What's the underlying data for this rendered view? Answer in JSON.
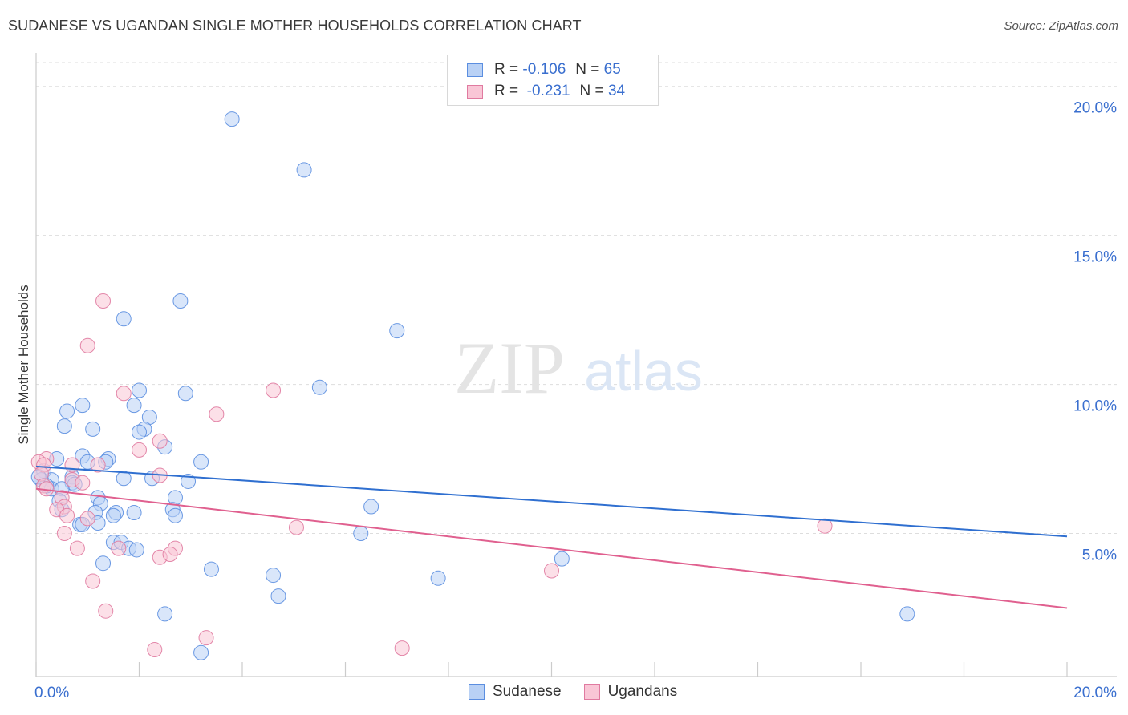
{
  "title": "SUDANESE VS UGANDAN SINGLE MOTHER HOUSEHOLDS CORRELATION CHART",
  "source": "Source: ZipAtlas.com",
  "watermark": {
    "zip": "ZIP",
    "atlas": "atlas"
  },
  "legend": {
    "r_label": "R =",
    "n_label": "N =",
    "rows": [
      {
        "r": "-0.106",
        "n": "65",
        "fill": "#b9d1f5",
        "stroke": "#5b8ee0"
      },
      {
        "r": "-0.231",
        "n": "34",
        "fill": "#f9c6d6",
        "stroke": "#e07aa0"
      }
    ]
  },
  "series_labels": [
    "Sudanese",
    "Ugandans"
  ],
  "chart_data": {
    "type": "scatter",
    "xlabel": "",
    "ylabel": "Single Mother Households",
    "xlim": [
      0,
      20
    ],
    "ylim": [
      0.2,
      20.8
    ],
    "x_tick_labels": [
      {
        "value": 0,
        "label": "0.0%"
      },
      {
        "value": 20,
        "label": "20.0%"
      }
    ],
    "y_tick_labels": [
      {
        "value": 5,
        "label": "5.0%"
      },
      {
        "value": 10,
        "label": "10.0%"
      },
      {
        "value": 15,
        "label": "15.0%"
      },
      {
        "value": 20,
        "label": "20.0%"
      }
    ],
    "grid": true,
    "legend_position": "top-center",
    "series": [
      {
        "name": "Sudanese",
        "color": "#5b8ee0",
        "fill": "#b9d1f5",
        "trend": {
          "x": [
            0,
            20
          ],
          "y": [
            7.25,
            4.9
          ]
        },
        "points": [
          [
            3.8,
            18.9
          ],
          [
            5.2,
            17.2
          ],
          [
            2.8,
            12.8
          ],
          [
            1.7,
            12.2
          ],
          [
            7.0,
            11.8
          ],
          [
            5.5,
            9.9
          ],
          [
            2.0,
            9.8
          ],
          [
            2.9,
            9.7
          ],
          [
            1.9,
            9.3
          ],
          [
            0.9,
            9.3
          ],
          [
            0.6,
            9.1
          ],
          [
            2.2,
            8.9
          ],
          [
            0.55,
            8.6
          ],
          [
            1.1,
            8.5
          ],
          [
            2.1,
            8.5
          ],
          [
            2.0,
            8.4
          ],
          [
            2.5,
            7.9
          ],
          [
            0.4,
            7.5
          ],
          [
            1.4,
            7.5
          ],
          [
            0.9,
            7.6
          ],
          [
            3.2,
            7.4
          ],
          [
            1.0,
            7.4
          ],
          [
            1.35,
            7.4
          ],
          [
            0.15,
            7.1
          ],
          [
            0.7,
            6.9
          ],
          [
            1.7,
            6.85
          ],
          [
            2.25,
            6.85
          ],
          [
            2.95,
            6.75
          ],
          [
            0.3,
            6.8
          ],
          [
            0.1,
            6.8
          ],
          [
            0.7,
            6.7
          ],
          [
            0.75,
            6.65
          ],
          [
            0.3,
            6.5
          ],
          [
            0.5,
            6.5
          ],
          [
            0.2,
            6.6
          ],
          [
            0.45,
            6.1
          ],
          [
            1.2,
            6.2
          ],
          [
            2.7,
            6.2
          ],
          [
            1.25,
            6.0
          ],
          [
            0.5,
            5.8
          ],
          [
            1.55,
            5.7
          ],
          [
            1.9,
            5.7
          ],
          [
            2.65,
            5.8
          ],
          [
            6.5,
            5.9
          ],
          [
            1.15,
            5.7
          ],
          [
            2.7,
            5.6
          ],
          [
            1.5,
            5.6
          ],
          [
            1.2,
            5.35
          ],
          [
            0.85,
            5.3
          ],
          [
            0.9,
            5.3
          ],
          [
            6.3,
            5.0
          ],
          [
            1.5,
            4.7
          ],
          [
            1.65,
            4.7
          ],
          [
            1.8,
            4.5
          ],
          [
            1.95,
            4.45
          ],
          [
            10.2,
            4.15
          ],
          [
            1.3,
            4.0
          ],
          [
            3.4,
            3.8
          ],
          [
            4.6,
            3.6
          ],
          [
            7.8,
            3.5
          ],
          [
            4.7,
            2.9
          ],
          [
            2.5,
            2.3
          ],
          [
            16.9,
            2.3
          ],
          [
            3.2,
            1.0
          ],
          [
            0.05,
            6.9
          ]
        ]
      },
      {
        "name": "Ugandans",
        "color": "#e07aa0",
        "fill": "#f9c6d6",
        "trend": {
          "x": [
            0,
            20
          ],
          "y": [
            6.5,
            2.5
          ]
        },
        "points": [
          [
            1.3,
            12.8
          ],
          [
            1.0,
            11.3
          ],
          [
            1.7,
            9.7
          ],
          [
            4.6,
            9.8
          ],
          [
            3.5,
            9.0
          ],
          [
            2.4,
            8.1
          ],
          [
            2.0,
            7.8
          ],
          [
            0.2,
            7.5
          ],
          [
            0.05,
            7.4
          ],
          [
            0.15,
            7.3
          ],
          [
            0.7,
            7.3
          ],
          [
            1.2,
            7.3
          ],
          [
            0.1,
            7.0
          ],
          [
            2.4,
            6.95
          ],
          [
            0.7,
            6.8
          ],
          [
            0.9,
            6.7
          ],
          [
            0.15,
            6.6
          ],
          [
            0.2,
            6.5
          ],
          [
            0.5,
            6.2
          ],
          [
            0.55,
            5.9
          ],
          [
            0.4,
            5.8
          ],
          [
            0.6,
            5.6
          ],
          [
            1.0,
            5.5
          ],
          [
            5.05,
            5.2
          ],
          [
            15.3,
            5.25
          ],
          [
            0.55,
            5.0
          ],
          [
            0.8,
            4.5
          ],
          [
            1.6,
            4.5
          ],
          [
            2.7,
            4.5
          ],
          [
            2.4,
            4.2
          ],
          [
            2.6,
            4.3
          ],
          [
            10.0,
            3.75
          ],
          [
            1.1,
            3.4
          ],
          [
            1.35,
            2.4
          ]
        ]
      }
    ],
    "extra_points_ugandans": [
      [
        2.3,
        1.1
      ],
      [
        3.3,
        1.5
      ],
      [
        7.1,
        1.15
      ]
    ]
  }
}
